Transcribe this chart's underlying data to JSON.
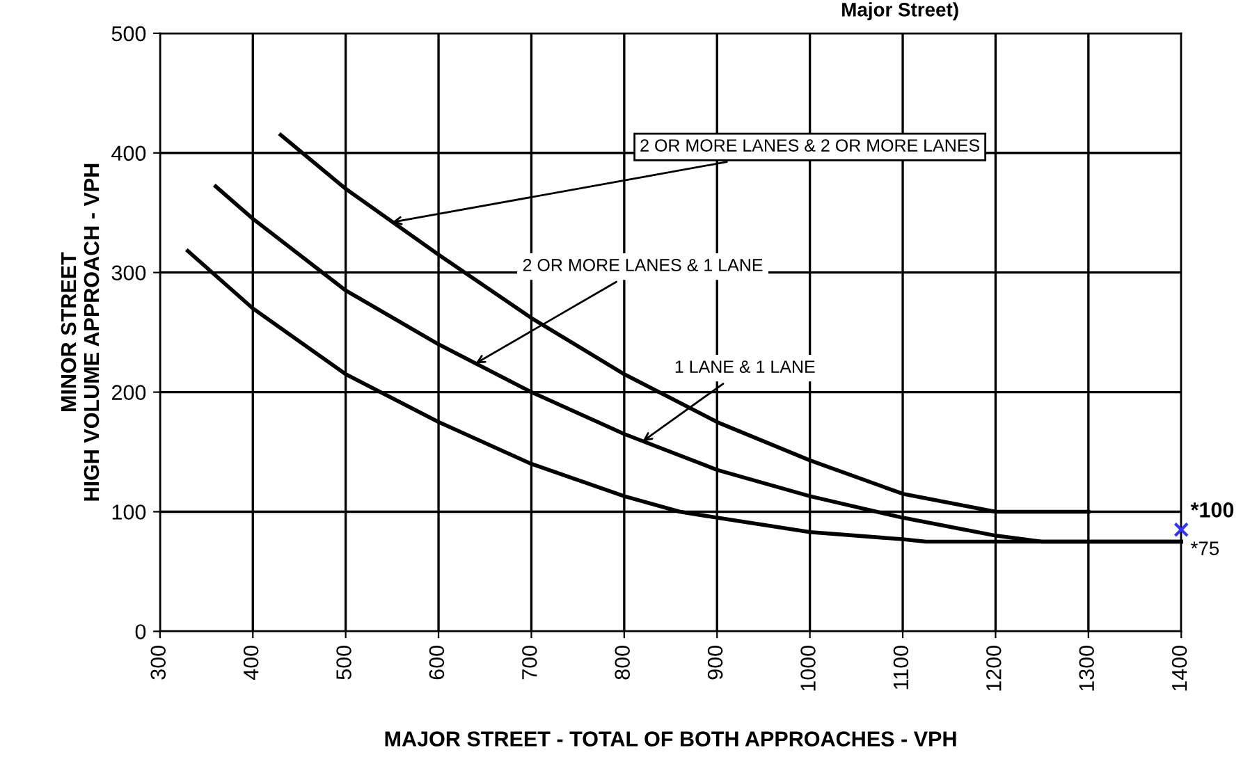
{
  "chart_data": {
    "type": "line",
    "title": "Major Street)",
    "xlabel": "MAJOR STREET - TOTAL OF BOTH APPROACHES - VPH",
    "ylabel": "MINOR STREET\nHIGH VOLUME APPROACH - VPH",
    "xlim": [
      300,
      1400
    ],
    "xticks": [
      300,
      400,
      500,
      600,
      700,
      800,
      900,
      1000,
      1100,
      1200,
      1300,
      1400
    ],
    "ylim": [
      0,
      500
    ],
    "yticks": [
      0,
      100,
      200,
      300,
      400,
      500
    ],
    "grid": true,
    "marker": "none",
    "line_style": "solid",
    "series": [
      {
        "color": "#000000",
        "x": [
          430,
          500,
          600,
          700,
          800,
          900,
          1000,
          1100,
          1200,
          1300
        ],
        "values": [
          415,
          370,
          315,
          262,
          215,
          175,
          143,
          115,
          100,
          100
        ]
      },
      {
        "color": "#000000",
        "x": [
          360,
          400,
          500,
          600,
          700,
          800,
          900,
          1000,
          1100,
          1200,
          1250,
          1400
        ],
        "values": [
          372,
          345,
          285,
          240,
          200,
          165,
          135,
          113,
          95,
          80,
          75,
          75
        ]
      },
      {
        "color": "#000000",
        "x": [
          330,
          400,
          500,
          600,
          700,
          800,
          860,
          900,
          1000,
          1100,
          1125,
          1400
        ],
        "values": [
          318,
          270,
          215,
          175,
          140,
          113,
          100,
          95,
          83,
          77,
          75,
          75
        ]
      },
      {
        "type": "scatter",
        "color": "#3333ff",
        "marker": "cross",
        "x": [
          1400
        ],
        "values": [
          85
        ]
      }
    ],
    "annotations": [
      {
        "text": "2 OR MORE LANES & 2 OR MORE LANES",
        "x": 550,
        "y": 342
      },
      {
        "text": "2 OR MORE LANES & 1 LANE",
        "x": 640,
        "y": 224
      },
      {
        "text": "1 LANE & 1 LANE",
        "x": 820,
        "y": 159
      },
      "*100",
      "*75"
    ]
  }
}
